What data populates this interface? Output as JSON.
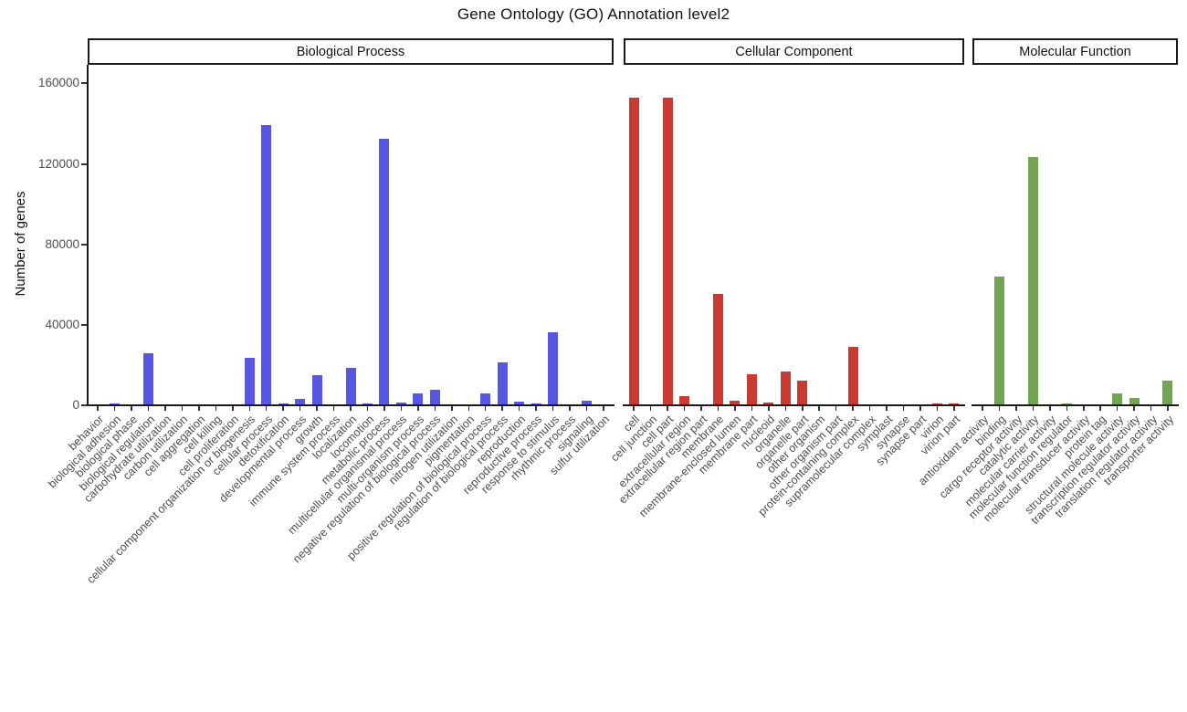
{
  "title": "Gene Ontology (GO) Annotation level2",
  "y_axis": {
    "label": "Number of genes",
    "tick_labels": [
      "0",
      "40000",
      "80000",
      "120000",
      "160000"
    ],
    "tick_values": [
      0,
      40000,
      80000,
      120000,
      160000
    ]
  },
  "panel_headers": [
    "Biological Process",
    "Cellular Component",
    "Molecular Function"
  ],
  "chart_data": {
    "type": "bar",
    "title": "Gene Ontology (GO) Annotation level2",
    "xlabel": "",
    "ylabel": "Number of genes",
    "ylim": [
      0,
      169000
    ],
    "grid": false,
    "legend_position": "none",
    "groups": [
      {
        "name": "Biological Process",
        "color": "#5757E3",
        "categories": [
          "behavior",
          "biological adhesion",
          "biological phase",
          "biological regulation",
          "carbohydrate utilization",
          "carbon utilization",
          "cell aggregation",
          "cell killing",
          "cell proliferation",
          "cellular component organization or biogenesis",
          "cellular process",
          "detoxification",
          "developmental process",
          "growth",
          "immune system process",
          "localization",
          "locomotion",
          "metabolic process",
          "multicellular organismal process",
          "multi-organism process",
          "negative regulation of biological process",
          "nitrogen utilization",
          "pigmentation",
          "positive regulation of biological process",
          "regulation of biological process",
          "reproduction",
          "reproductive process",
          "response to stimulus",
          "rhythmic process",
          "signaling",
          "sulfur utilization"
        ],
        "values": [
          200,
          600,
          30,
          25500,
          20,
          30,
          40,
          100,
          150,
          23400,
          138800,
          800,
          3000,
          14700,
          250,
          18500,
          800,
          132200,
          1100,
          5800,
          7700,
          40,
          60,
          5800,
          20900,
          1800,
          650,
          36200,
          100,
          2100,
          30
        ]
      },
      {
        "name": "Cellular Component",
        "color": "#CB3A32",
        "categories": [
          "cell",
          "cell junction",
          "cell part",
          "extracellular region",
          "extracellular region part",
          "membrane",
          "membrane-enclosed lumen",
          "membrane part",
          "nucleoid",
          "organelle",
          "organelle part",
          "other organism",
          "other organism part",
          "protein-containing complex",
          "supramolecular complex",
          "symplast",
          "synapse",
          "synapse part",
          "virion",
          "virion part"
        ],
        "values": [
          152600,
          300,
          152400,
          4400,
          250,
          55100,
          2000,
          15100,
          1200,
          16500,
          12000,
          60,
          70,
          28600,
          150,
          20,
          90,
          60,
          600,
          500
        ]
      },
      {
        "name": "Molecular Function",
        "color": "#73A453",
        "categories": [
          "antioxidant activity",
          "binding",
          "cargo receptor activity",
          "catalytic activity",
          "molecular carrier activity",
          "molecular function regulator",
          "molecular transducer activity",
          "protein tag",
          "structural molecule activity",
          "transcription regulator activity",
          "translation regulator activity",
          "transporter activity"
        ],
        "values": [
          120,
          63900,
          50,
          123000,
          60,
          900,
          100,
          30,
          5800,
          3300,
          80,
          12100
        ]
      }
    ]
  }
}
